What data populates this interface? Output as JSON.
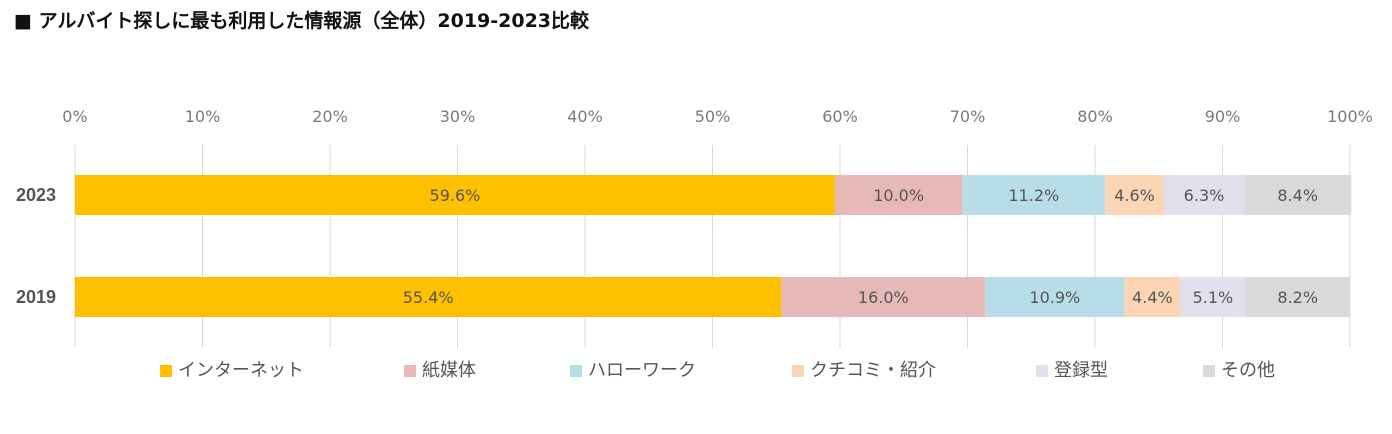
{
  "chart_data": {
    "type": "bar",
    "orientation": "horizontal",
    "stacked": true,
    "title": "■ アルバイト探しに最も利用した情報源（全体）2019-2023比較",
    "categories": [
      "2023",
      "2019"
    ],
    "x_ticks": [
      "0%",
      "10%",
      "20%",
      "30%",
      "40%",
      "50%",
      "60%",
      "70%",
      "80%",
      "90%",
      "100%"
    ],
    "xlim": [
      0,
      100
    ],
    "grid": true,
    "legend_position": "bottom",
    "series": [
      {
        "name": "インターネット",
        "color": "#FFC000",
        "values": [
          59.6,
          55.4
        ],
        "labels": [
          "59.6%",
          "55.4%"
        ]
      },
      {
        "name": "紙媒体",
        "color": "#E6B9B8",
        "values": [
          10.0,
          16.0
        ],
        "labels": [
          "10.0%",
          "16.0%"
        ]
      },
      {
        "name": "ハローワーク",
        "color": "#B7DEE8",
        "values": [
          11.2,
          10.9
        ],
        "labels": [
          "11.2%",
          "10.9%"
        ]
      },
      {
        "name": "クチコミ・紹介",
        "color": "#FCD5B5",
        "values": [
          4.6,
          4.4
        ],
        "labels": [
          "4.6%",
          "4.4%"
        ]
      },
      {
        "name": "登録型",
        "color": "#E4DFEC",
        "values": [
          6.3,
          5.1
        ],
        "labels": [
          "6.3%",
          "5.1%"
        ]
      },
      {
        "name": "その他",
        "color": "#D9D9D9",
        "values": [
          8.4,
          8.2
        ],
        "labels": [
          "8.4%",
          "8.2%"
        ]
      }
    ]
  }
}
